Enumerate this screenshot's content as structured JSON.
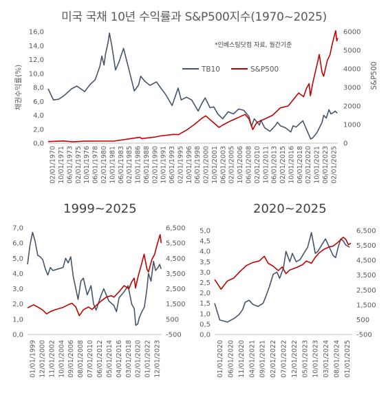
{
  "title": "미국 국채 10년 수익률과 S&P500지수(1970~2025)",
  "source_note": "*인베스팅닷컴 자료, 월간기준",
  "colors": {
    "tb10": "#44546a",
    "sp500": "#c00000",
    "axis_text": "#595959",
    "grid": "#d9d9d9"
  },
  "chart_data": [
    {
      "type": "line",
      "title": "미국 국채 10년 수익률과 S&P500지수(1970~2025)",
      "ylabel": "채권수익률(%)",
      "y2label": "S&P500",
      "ylim": [
        0,
        16
      ],
      "y2lim": [
        0,
        6000
      ],
      "yticks": [
        "0,0",
        "2,0",
        "4,0",
        "6,0",
        "8,0",
        "10,0",
        "12,0",
        "14,0",
        "16,0"
      ],
      "y2ticks": [
        "0",
        "1000",
        "2000",
        "3000",
        "4000",
        "5000",
        "6000"
      ],
      "xlim": [
        1970.0,
        2025.5
      ],
      "xticks": [
        "02/01/1970",
        "10/01/1971",
        "06/01/1973",
        "02/01/1975",
        "10/01/1976",
        "06/01/1978",
        "02/01/1980",
        "10/01/1981",
        "06/01/1983",
        "02/01/1985",
        "10/01/1986",
        "06/01/1988",
        "02/01/1990",
        "10/01/1991",
        "06/01/1993",
        "02/01/1995",
        "10/01/1996",
        "06/01/1998",
        "02/01/2000",
        "10/01/2001",
        "06/01/2003",
        "02/01/2005",
        "10/01/2006",
        "06/01/2008",
        "02/01/2010",
        "10/01/2011",
        "06/01/2013",
        "02/01/2015",
        "10/01/2016",
        "06/01/2018",
        "02/01/2020",
        "10/01/2021",
        "06/01/2023",
        "02/01/2025"
      ],
      "legend": "center",
      "grid": false,
      "series": [
        {
          "name": "TB10",
          "axis": "left",
          "color": "#44546a",
          "x": [
            1970.0,
            1971.0,
            1972.0,
            1973.0,
            1974.5,
            1975.5,
            1977.0,
            1978.0,
            1979.0,
            1979.9,
            1980.3,
            1980.7,
            1981.0,
            1981.5,
            1981.75,
            1982.2,
            1982.9,
            1983.5,
            1984.45,
            1985.5,
            1986.5,
            1987.3,
            1987.75,
            1988.5,
            1989.5,
            1990.75,
            1991.5,
            1992.5,
            1993.75,
            1994.9,
            1995.5,
            1996.5,
            1997.5,
            1998.75,
            1999.5,
            2000.1,
            2001.0,
            2001.75,
            2002.5,
            2003.45,
            2004.5,
            2005.5,
            2006.5,
            2007.5,
            2008.5,
            2008.95,
            2009.5,
            2010.5,
            2010.75,
            2011.5,
            2012.5,
            2013.5,
            2013.95,
            2014.5,
            2015.5,
            2016.5,
            2016.95,
            2017.5,
            2018.8,
            2019.5,
            2020.3,
            2020.75,
            2021.5,
            2022.5,
            2022.8,
            2023.3,
            2023.8,
            2024.2,
            2024.7,
            2025.0,
            2025.4
          ],
          "values": [
            7.8,
            6.2,
            6.3,
            6.8,
            7.8,
            8.2,
            7.4,
            8.4,
            9.1,
            11.0,
            12.5,
            11.2,
            12.8,
            14.5,
            15.8,
            14.0,
            10.5,
            11.5,
            13.6,
            10.5,
            7.5,
            8.3,
            9.6,
            8.9,
            8.3,
            8.8,
            8.0,
            7.0,
            5.4,
            7.9,
            6.2,
            6.6,
            6.2,
            4.6,
            5.8,
            6.5,
            5.1,
            5.2,
            4.2,
            3.5,
            4.5,
            4.2,
            4.9,
            4.7,
            3.8,
            2.4,
            3.5,
            2.6,
            3.3,
            2.2,
            1.7,
            2.5,
            3.0,
            2.5,
            2.2,
            1.6,
            2.5,
            2.3,
            3.2,
            2.0,
            0.6,
            0.8,
            1.5,
            3.0,
            4.0,
            3.6,
            4.8,
            4.2,
            4.4,
            4.6,
            4.3
          ]
        },
        {
          "name": "S&P500",
          "axis": "right",
          "color": "#c00000",
          "x": [
            1970.0,
            1972.9,
            1974.8,
            1976.9,
            1980.0,
            1982.6,
            1987.6,
            1987.9,
            1990.5,
            1991.5,
            1994.0,
            1995.0,
            1996.5,
            1998.0,
            1999.5,
            2000.2,
            2001.5,
            2002.75,
            2003.5,
            2005.0,
            2007.75,
            2008.5,
            2009.2,
            2010.0,
            2011.5,
            2013.0,
            2014.5,
            2016.0,
            2018.0,
            2018.95,
            2019.5,
            2020.0,
            2020.25,
            2020.75,
            2021.5,
            2021.95,
            2022.5,
            2022.8,
            2023.5,
            2024.0,
            2024.5,
            2024.95,
            2025.1,
            2025.3,
            2025.5
          ],
          "values": [
            85,
            118,
            70,
            107,
            112,
            110,
            320,
            245,
            330,
            390,
            470,
            460,
            700,
            1000,
            1350,
            1470,
            1150,
            850,
            980,
            1200,
            1550,
            1300,
            735,
            1120,
            1300,
            1500,
            1900,
            2000,
            2700,
            2500,
            2950,
            3200,
            2550,
            3300,
            4200,
            4770,
            3800,
            3600,
            4450,
            4750,
            5400,
            5900,
            6050,
            5500,
            5650
          ]
        }
      ]
    },
    {
      "type": "line",
      "title": "1999~2025",
      "ylim": [
        0,
        7.0
      ],
      "y2lim": [
        -500,
        6500
      ],
      "yticks": [
        "0,0",
        "1,0",
        "2,0",
        "3,0",
        "4,0",
        "5,0",
        "6,0",
        "7,0"
      ],
      "y2ticks": [
        "-500",
        "500",
        "1,500",
        "2,500",
        "3,500",
        "4,500",
        "5,500",
        "6,500"
      ],
      "xlim": [
        1999.0,
        2025.4
      ],
      "xticks": [
        "01/01/1999",
        "12/01/2000",
        "11/01/2002",
        "10/01/2004",
        "09/01/2006",
        "08/01/2008",
        "07/01/2010",
        "06/01/2012",
        "05/01/2014",
        "04/01/2016",
        "03/01/2018",
        "02/01/2020",
        "01/01/2022",
        "12/01/2023"
      ],
      "grid": false,
      "series": [
        {
          "name": "TB10",
          "axis": "left",
          "color": "#44546a",
          "x": [
            1999.0,
            1999.5,
            2000.0,
            2000.5,
            2001.0,
            2001.5,
            2002.0,
            2002.5,
            2003.0,
            2003.5,
            2004.0,
            2005.0,
            2006.0,
            2006.5,
            2007.0,
            2007.5,
            2008.0,
            2008.95,
            2009.5,
            2010.0,
            2010.75,
            2011.5,
            2012.0,
            2012.5,
            2013.5,
            2014.0,
            2015.0,
            2016.0,
            2016.5,
            2017.0,
            2018.0,
            2018.8,
            2019.5,
            2020.0,
            2020.3,
            2020.7,
            2021.0,
            2021.5,
            2022.0,
            2022.5,
            2022.8,
            2023.3,
            2023.8,
            2024.2,
            2024.7,
            2025.0,
            2025.3
          ],
          "values": [
            4.6,
            5.9,
            6.7,
            6.1,
            5.2,
            5.1,
            4.9,
            4.3,
            3.9,
            4.4,
            4.2,
            4.3,
            4.4,
            5.0,
            4.7,
            5.1,
            3.8,
            2.3,
            3.5,
            3.7,
            2.6,
            3.2,
            2.0,
            1.6,
            2.6,
            3.0,
            2.2,
            1.9,
            1.5,
            2.4,
            2.8,
            3.2,
            2.0,
            1.7,
            0.6,
            0.7,
            1.1,
            1.5,
            1.8,
            3.0,
            4.0,
            3.5,
            4.8,
            4.2,
            4.4,
            4.6,
            4.3
          ]
        },
        {
          "name": "S&P500",
          "axis": "right",
          "color": "#c00000",
          "x": [
            1999.0,
            2000.2,
            2001.0,
            2002.0,
            2002.75,
            2003.5,
            2004.5,
            2006.0,
            2007.0,
            2007.75,
            2008.5,
            2009.2,
            2010.0,
            2011.0,
            2011.7,
            2012.5,
            2013.5,
            2014.5,
            2015.5,
            2016.0,
            2017.0,
            2018.0,
            2018.95,
            2019.5,
            2020.0,
            2020.25,
            2020.75,
            2021.5,
            2021.95,
            2022.5,
            2022.8,
            2023.5,
            2024.0,
            2024.5,
            2024.95,
            2025.1,
            2025.3
          ],
          "values": [
            1250,
            1450,
            1300,
            1100,
            850,
            1000,
            1130,
            1280,
            1450,
            1550,
            1300,
            735,
            1120,
            1300,
            1150,
            1400,
            1700,
            1950,
            2050,
            1950,
            2300,
            2700,
            2500,
            2950,
            3200,
            2550,
            3300,
            4200,
            4770,
            3800,
            3600,
            4450,
            4750,
            5400,
            5900,
            6050,
            5500
          ]
        }
      ]
    },
    {
      "type": "line",
      "title": "2020~2025",
      "ylim": [
        0,
        5.0
      ],
      "y2lim": [
        -500,
        6500
      ],
      "yticks": [
        "0,0",
        "0,5",
        "1,0",
        "1,5",
        "2,0",
        "2,5",
        "3,0",
        "3,5",
        "4,0",
        "4,5",
        "5,0"
      ],
      "y2ticks": [
        "-500",
        "500",
        "1,500",
        "2,500",
        "3,500",
        "4,500",
        "5,500",
        "6,500"
      ],
      "xlim": [
        2020.0,
        2025.4
      ],
      "xticks": [
        "01/01/2020",
        "06/01/2020",
        "11/01/2020",
        "04/01/2021",
        "09/01/2021",
        "02/01/2022",
        "07/01/2022",
        "12/01/2022",
        "05/01/2023",
        "10/01/2023",
        "03/01/2024",
        "08/01/2024",
        "01/01/2025"
      ],
      "grid": false,
      "series": [
        {
          "name": "TB10",
          "axis": "left",
          "color": "#44546a",
          "x": [
            2020.0,
            2020.1,
            2020.2,
            2020.35,
            2020.5,
            2020.65,
            2020.8,
            2020.95,
            2021.1,
            2021.2,
            2021.35,
            2021.5,
            2021.7,
            2021.9,
            2022.0,
            2022.15,
            2022.3,
            2022.45,
            2022.55,
            2022.7,
            2022.8,
            2022.95,
            2023.05,
            2023.2,
            2023.35,
            2023.5,
            2023.65,
            2023.8,
            2023.95,
            2024.05,
            2024.2,
            2024.35,
            2024.5,
            2024.65,
            2024.75,
            2024.85,
            2024.95,
            2025.05,
            2025.15,
            2025.3
          ],
          "values": [
            1.5,
            1.1,
            0.7,
            0.65,
            0.6,
            0.7,
            0.8,
            0.95,
            1.2,
            1.55,
            1.65,
            1.45,
            1.35,
            1.5,
            1.8,
            2.3,
            2.9,
            3.0,
            2.7,
            3.2,
            4.0,
            3.5,
            3.9,
            3.5,
            3.6,
            3.9,
            4.2,
            4.9,
            3.9,
            4.0,
            4.3,
            4.6,
            4.2,
            3.8,
            3.7,
            4.2,
            4.6,
            4.5,
            4.3,
            4.2
          ]
        },
        {
          "name": "S&P500",
          "axis": "right",
          "color": "#c00000",
          "x": [
            2020.0,
            2020.1,
            2020.25,
            2020.5,
            2020.75,
            2021.0,
            2021.25,
            2021.5,
            2021.75,
            2021.95,
            2022.1,
            2022.3,
            2022.5,
            2022.65,
            2022.8,
            2022.95,
            2023.2,
            2023.45,
            2023.6,
            2023.8,
            2023.95,
            2024.1,
            2024.3,
            2024.5,
            2024.65,
            2024.8,
            2024.95,
            2025.05,
            2025.15,
            2025.25,
            2025.35
          ],
          "values": [
            3200,
            2950,
            2550,
            3100,
            3300,
            3750,
            4150,
            4350,
            4450,
            4770,
            4300,
            4100,
            3800,
            4050,
            3600,
            3850,
            4000,
            4200,
            4450,
            4300,
            4700,
            5000,
            5250,
            5400,
            5450,
            5650,
            5880,
            6050,
            5900,
            5550,
            5650
          ]
        }
      ]
    }
  ]
}
